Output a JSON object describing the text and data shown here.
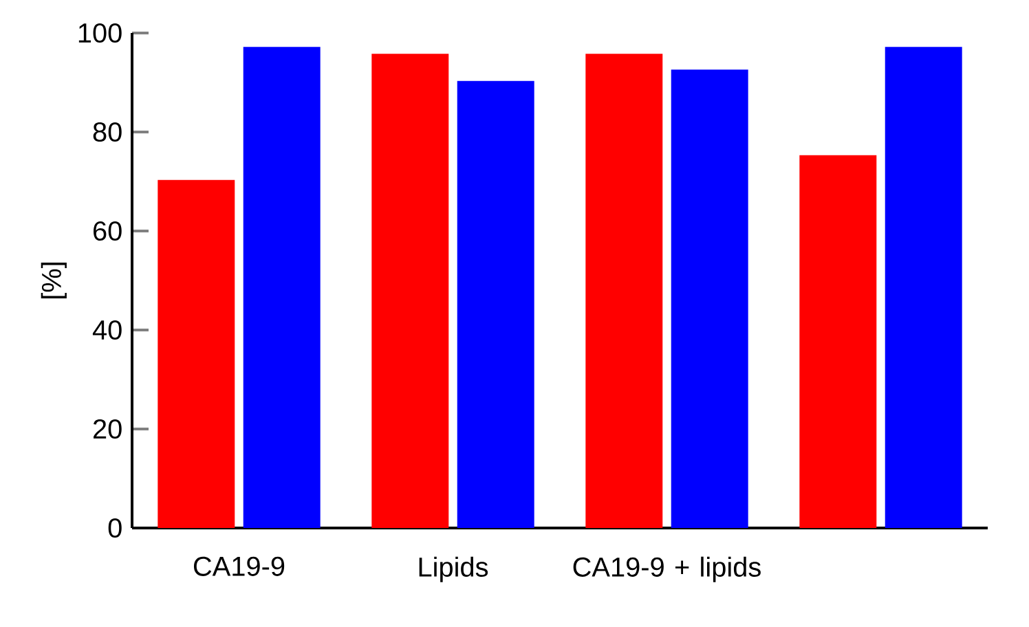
{
  "chart_data": {
    "type": "bar",
    "ylabel": "[%]",
    "categories": [
      "CA19-9",
      "Lipids",
      "CA19-9 + lipids",
      null
    ],
    "series": [
      {
        "color": "#ff0000",
        "values": [
          70.3,
          95.8,
          95.8,
          75.3
        ]
      },
      {
        "color": "#0000ff",
        "values": [
          97.2,
          90.3,
          92.6,
          97.2
        ]
      }
    ],
    "ylim": [
      0,
      100
    ],
    "yticks": [
      0,
      20,
      40,
      60,
      80,
      100
    ]
  }
}
